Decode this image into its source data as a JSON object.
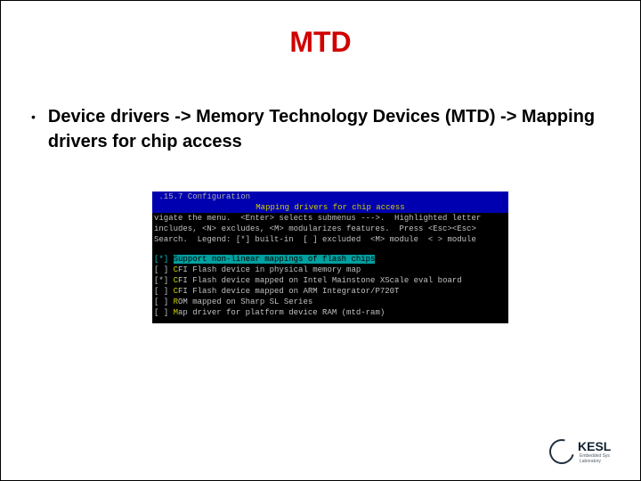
{
  "title": "MTD",
  "bullet": "Device drivers -> Memory Technology Devices (MTD) -> Mapping drivers for chip access",
  "terminal": {
    "topbar": " .15.7 Configuration",
    "heading": "Mapping drivers for chip access",
    "help1": "vigate the menu.  <Enter> selects submenus --->.  Highlighted letter",
    "help2": "includes, <N> excludes, <M> modularizes features.  Press <Esc><Esc>",
    "help3": "Search.  Legend: [*] built-in  [ ] excluded  <M> module  < > module",
    "rows": [
      {
        "mark": "[*]",
        "yChar": "S",
        "rest": "upport non-linear mappings of flash chips",
        "selected": true
      },
      {
        "mark": "[ ]",
        "yChar": "C",
        "rest": "FI Flash device in physical memory map",
        "selected": false
      },
      {
        "mark": "[*]",
        "yChar": "C",
        "rest": "FI Flash device mapped on Intel Mainstone XScale eval board",
        "selected": false
      },
      {
        "mark": "[ ]",
        "yChar": "C",
        "rest": "FI Flash device mapped on ARM Integrator/P720T",
        "selected": false
      },
      {
        "mark": "[ ]",
        "yChar": "R",
        "rest": "OM mapped on Sharp SL Series",
        "selected": false
      },
      {
        "mark": "[ ]",
        "yChar": "M",
        "rest": "ap driver for platform device RAM (mtd-ram)",
        "selected": false
      }
    ]
  },
  "logo": {
    "text": "KESL",
    "sub": "Embedded Sys Laboratory"
  }
}
